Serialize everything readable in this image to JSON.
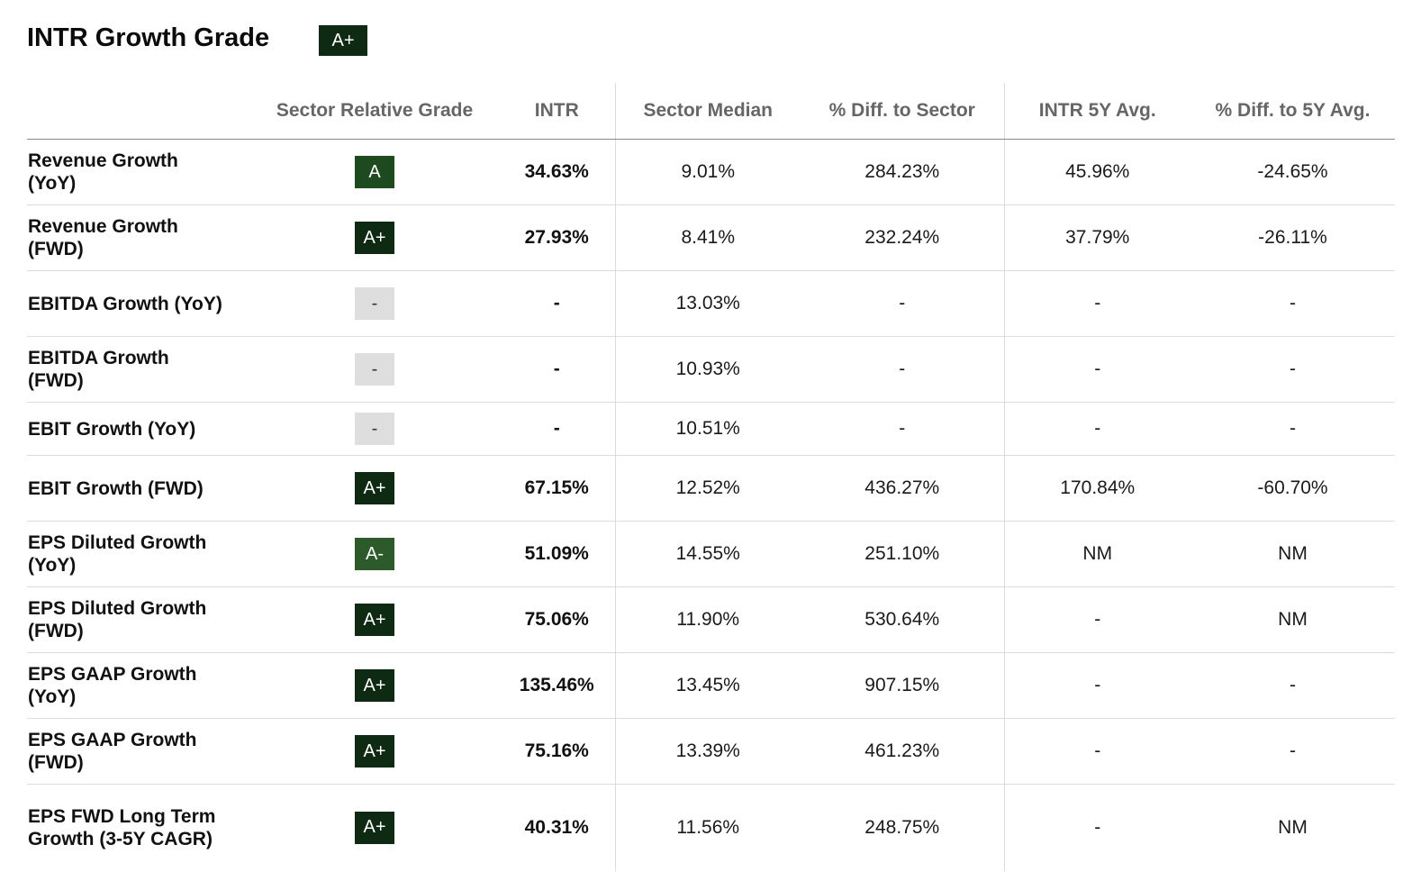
{
  "header": {
    "title": "INTR Growth Grade",
    "grade": "A+",
    "grade_color": "#0f2a12"
  },
  "columns": [
    "",
    "Sector Relative Grade",
    "INTR",
    "Sector Median",
    "% Diff. to Sector",
    "INTR 5Y Avg.",
    "% Diff. to 5Y Avg."
  ],
  "grade_colors": {
    "A+": "#0f2a12",
    "A": "#1e4a20",
    "A-": "#2c5a2a",
    "-": "#dedede"
  },
  "grade_text_colors": {
    "A+": "#ffffff",
    "A": "#ffffff",
    "A-": "#ffffff",
    "-": "#333333"
  },
  "rows": [
    {
      "metric": "Revenue Growth (YoY)",
      "grade": "A",
      "intr": "34.63%",
      "sector_median": "9.01%",
      "diff_sector": "284.23%",
      "avg_5y": "45.96%",
      "diff_5y": "-24.65%"
    },
    {
      "metric": "Revenue Growth (FWD)",
      "grade": "A+",
      "intr": "27.93%",
      "sector_median": "8.41%",
      "diff_sector": "232.24%",
      "avg_5y": "37.79%",
      "diff_5y": "-26.11%"
    },
    {
      "metric": "EBITDA Growth (YoY)",
      "grade": "-",
      "intr": "-",
      "sector_median": "13.03%",
      "diff_sector": "-",
      "avg_5y": "-",
      "diff_5y": "-"
    },
    {
      "metric": "EBITDA Growth (FWD)",
      "grade": "-",
      "intr": "-",
      "sector_median": "10.93%",
      "diff_sector": "-",
      "avg_5y": "-",
      "diff_5y": "-"
    },
    {
      "metric": "EBIT Growth (YoY)",
      "grade": "-",
      "intr": "-",
      "sector_median": "10.51%",
      "diff_sector": "-",
      "avg_5y": "-",
      "diff_5y": "-"
    },
    {
      "metric": "EBIT Growth (FWD)",
      "grade": "A+",
      "intr": "67.15%",
      "sector_median": "12.52%",
      "diff_sector": "436.27%",
      "avg_5y": "170.84%",
      "diff_5y": "-60.70%"
    },
    {
      "metric": "EPS Diluted Growth (YoY)",
      "grade": "A-",
      "intr": "51.09%",
      "sector_median": "14.55%",
      "diff_sector": "251.10%",
      "avg_5y": "NM",
      "diff_5y": "NM"
    },
    {
      "metric": "EPS Diluted Growth (FWD)",
      "grade": "A+",
      "intr": "75.06%",
      "sector_median": "11.90%",
      "diff_sector": "530.64%",
      "avg_5y": "-",
      "diff_5y": "NM"
    },
    {
      "metric": "EPS GAAP Growth (YoY)",
      "grade": "A+",
      "intr": "135.46%",
      "sector_median": "13.45%",
      "diff_sector": "907.15%",
      "avg_5y": "-",
      "diff_5y": "-"
    },
    {
      "metric": "EPS GAAP Growth (FWD)",
      "grade": "A+",
      "intr": "75.16%",
      "sector_median": "13.39%",
      "diff_sector": "461.23%",
      "avg_5y": "-",
      "diff_5y": "-"
    },
    {
      "metric": "EPS FWD Long Term Growth (3-5Y CAGR)",
      "grade": "A+",
      "intr": "40.31%",
      "sector_median": "11.56%",
      "diff_sector": "248.75%",
      "avg_5y": "-",
      "diff_5y": "NM"
    }
  ]
}
